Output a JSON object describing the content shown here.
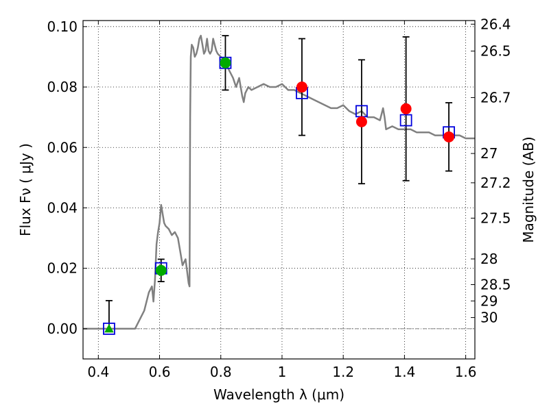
{
  "chart_data": {
    "type": "scatter",
    "xlabel": "Wavelength  λ (μm)",
    "ylabel": "Flux  Fν  ( μJy )",
    "y2label": "Magnitude (AB)",
    "xlim": [
      0.35,
      1.63
    ],
    "ylim": [
      -0.01,
      0.102
    ],
    "grid": true,
    "xticks": [
      0.4,
      0.6,
      0.8,
      1.0,
      1.2,
      1.4,
      1.6
    ],
    "xtick_labels": [
      "0.4",
      "0.6",
      "0.8",
      "1",
      "1.2",
      "1.4",
      "1.6"
    ],
    "yticks": [
      0.0,
      0.02,
      0.04,
      0.06,
      0.08,
      0.1
    ],
    "ytick_labels": [
      "0.00",
      "0.02",
      "0.04",
      "0.06",
      "0.08",
      "0.10"
    ],
    "y2ticks": [
      {
        "label": "26.4",
        "flux": 0.1008
      },
      {
        "label": "26.5",
        "flux": 0.0919
      },
      {
        "label": "26.7",
        "flux": 0.0765
      },
      {
        "label": "27",
        "flux": 0.058
      },
      {
        "label": "27.2",
        "flux": 0.0483
      },
      {
        "label": "27.5",
        "flux": 0.0366
      },
      {
        "label": "28",
        "flux": 0.0231
      },
      {
        "label": "28.5",
        "flux": 0.0146
      },
      {
        "label": "29",
        "flux": 0.0092
      },
      {
        "label": "30",
        "flux": 0.0037
      }
    ],
    "model_curve": {
      "color": "#808080",
      "x": [
        0.35,
        0.4,
        0.45,
        0.5,
        0.52,
        0.55,
        0.565,
        0.575,
        0.58,
        0.585,
        0.59,
        0.595,
        0.6,
        0.605,
        0.61,
        0.615,
        0.62,
        0.63,
        0.64,
        0.65,
        0.66,
        0.67,
        0.675,
        0.685,
        0.695,
        0.698,
        0.7,
        0.702,
        0.705,
        0.71,
        0.715,
        0.72,
        0.725,
        0.73,
        0.735,
        0.74,
        0.745,
        0.75,
        0.755,
        0.76,
        0.765,
        0.77,
        0.775,
        0.78,
        0.785,
        0.79,
        0.8,
        0.81,
        0.82,
        0.83,
        0.84,
        0.85,
        0.86,
        0.87,
        0.875,
        0.88,
        0.89,
        0.9,
        0.92,
        0.94,
        0.96,
        0.98,
        1.0,
        1.02,
        1.04,
        1.06,
        1.08,
        1.1,
        1.12,
        1.14,
        1.16,
        1.18,
        1.2,
        1.22,
        1.24,
        1.26,
        1.28,
        1.3,
        1.32,
        1.33,
        1.335,
        1.34,
        1.36,
        1.38,
        1.4,
        1.42,
        1.44,
        1.46,
        1.48,
        1.5,
        1.52,
        1.54,
        1.56,
        1.58,
        1.6,
        1.62,
        1.63
      ],
      "y": [
        0.0,
        0.0,
        0.0,
        0.0,
        0.0,
        0.006,
        0.012,
        0.014,
        0.009,
        0.016,
        0.028,
        0.032,
        0.035,
        0.041,
        0.038,
        0.035,
        0.034,
        0.033,
        0.031,
        0.032,
        0.03,
        0.024,
        0.021,
        0.023,
        0.015,
        0.014,
        0.07,
        0.09,
        0.094,
        0.093,
        0.09,
        0.091,
        0.093,
        0.096,
        0.097,
        0.094,
        0.091,
        0.092,
        0.096,
        0.092,
        0.091,
        0.092,
        0.096,
        0.094,
        0.092,
        0.091,
        0.09,
        0.089,
        0.087,
        0.085,
        0.083,
        0.08,
        0.083,
        0.077,
        0.075,
        0.078,
        0.08,
        0.079,
        0.08,
        0.081,
        0.08,
        0.08,
        0.081,
        0.079,
        0.079,
        0.078,
        0.077,
        0.076,
        0.075,
        0.074,
        0.073,
        0.073,
        0.074,
        0.072,
        0.071,
        0.072,
        0.07,
        0.07,
        0.069,
        0.073,
        0.07,
        0.066,
        0.067,
        0.066,
        0.066,
        0.066,
        0.065,
        0.065,
        0.065,
        0.064,
        0.064,
        0.064,
        0.064,
        0.064,
        0.063,
        0.063,
        0.063
      ]
    },
    "model_points": {
      "marker": "open-square",
      "color": "#0000dd",
      "x": [
        0.435,
        0.605,
        0.815,
        1.065,
        1.26,
        1.405,
        1.545
      ],
      "y": [
        0.0,
        0.02,
        0.088,
        0.078,
        0.072,
        0.069,
        0.065
      ]
    },
    "observed_points": [
      {
        "x": 0.435,
        "y": 0.0,
        "err": 0.0093,
        "color": "#00aa00",
        "marker": "triangle"
      },
      {
        "x": 0.605,
        "y": 0.0193,
        "err": 0.0037,
        "color": "#00aa00",
        "marker": "circle"
      },
      {
        "x": 0.815,
        "y": 0.088,
        "err": 0.009,
        "color": "#00aa00",
        "marker": "circle"
      },
      {
        "x": 1.065,
        "y": 0.08,
        "err": 0.016,
        "color": "#ff0000",
        "marker": "circle"
      },
      {
        "x": 1.26,
        "y": 0.0685,
        "err": 0.0205,
        "color": "#ff0000",
        "marker": "circle"
      },
      {
        "x": 1.405,
        "y": 0.0728,
        "err": 0.0238,
        "color": "#ff0000",
        "marker": "circle"
      },
      {
        "x": 1.545,
        "y": 0.0635,
        "err": 0.0113,
        "color": "#ff0000",
        "marker": "circle"
      }
    ]
  }
}
